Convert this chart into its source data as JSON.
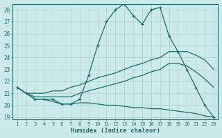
{
  "xlabel": "Humidex (Indice chaleur)",
  "xlim_min": 0.5,
  "xlim_max": 23.5,
  "ylim_min": 18.8,
  "ylim_max": 28.5,
  "xticks": [
    1,
    2,
    3,
    4,
    5,
    6,
    7,
    8,
    9,
    10,
    11,
    12,
    13,
    14,
    15,
    16,
    17,
    18,
    19,
    20,
    21,
    22,
    23
  ],
  "yticks": [
    19,
    20,
    21,
    22,
    23,
    24,
    25,
    26,
    27,
    28
  ],
  "bg_color": "#cceaea",
  "grid_color": "#b0d4d4",
  "line_color": "#1a6b6b",
  "line1_x": [
    1,
    2,
    3,
    4,
    5,
    6,
    7,
    8,
    9,
    10,
    11,
    12,
    13,
    14,
    15,
    16,
    17,
    18,
    19,
    20,
    21,
    22,
    23
  ],
  "line1_y": [
    21.5,
    21.0,
    20.5,
    20.5,
    20.5,
    20.1,
    20.1,
    20.5,
    22.5,
    25.0,
    27.0,
    28.0,
    28.5,
    27.5,
    26.8,
    28.0,
    28.2,
    25.8,
    24.5,
    23.0,
    21.5,
    20.0,
    19.0
  ],
  "line2_x": [
    1,
    2,
    3,
    4,
    5,
    6,
    7,
    8,
    9,
    10,
    11,
    12,
    13,
    14,
    15,
    16,
    17,
    18,
    19,
    20,
    21,
    22,
    23
  ],
  "line2_y": [
    21.5,
    21.0,
    21.0,
    21.0,
    21.2,
    21.2,
    21.5,
    21.7,
    22.0,
    22.3,
    22.5,
    22.7,
    23.0,
    23.3,
    23.5,
    23.8,
    24.0,
    24.5,
    24.5,
    24.5,
    24.2,
    23.8,
    23.0
  ],
  "line3_x": [
    1,
    2,
    3,
    4,
    5,
    6,
    7,
    8,
    9,
    10,
    11,
    12,
    13,
    14,
    15,
    16,
    17,
    18,
    19,
    20,
    21,
    22,
    23
  ],
  "line3_y": [
    21.5,
    21.0,
    20.7,
    20.7,
    20.7,
    20.7,
    20.7,
    21.0,
    21.2,
    21.4,
    21.6,
    21.8,
    22.0,
    22.3,
    22.5,
    22.8,
    23.0,
    23.5,
    23.5,
    23.3,
    22.8,
    22.2,
    21.5
  ],
  "line4_x": [
    1,
    2,
    3,
    4,
    5,
    6,
    7,
    8,
    9,
    10,
    11,
    12,
    13,
    14,
    15,
    16,
    17,
    18,
    19,
    20,
    21,
    22,
    23
  ],
  "line4_y": [
    21.5,
    21.0,
    20.5,
    20.5,
    20.3,
    20.1,
    20.1,
    20.2,
    20.2,
    20.1,
    20.0,
    20.0,
    19.9,
    19.8,
    19.8,
    19.7,
    19.7,
    19.6,
    19.5,
    19.4,
    19.3,
    19.1,
    19.0
  ]
}
